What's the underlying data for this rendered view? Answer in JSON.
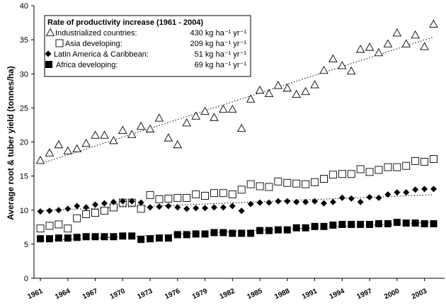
{
  "chart_data": {
    "type": "scatter",
    "ylabel": "Average root & tuber yield (tonnes/ha)",
    "ylim": [
      0,
      40
    ],
    "yticks": [
      "0",
      "5",
      "10",
      "15",
      "20",
      "25",
      "30",
      "35",
      "40"
    ],
    "xlim": [
      1961,
      2004
    ],
    "xticks": [
      "1961",
      "1964",
      "1967",
      "1970",
      "1973",
      "1976",
      "1979",
      "1982",
      "1985",
      "1988",
      "1991",
      "1994",
      "1997",
      "2000",
      "2003"
    ],
    "grid": false,
    "legend_position": "top-left",
    "legend_title": "Rate of productivity increase (1961 - 2004)",
    "x": [
      1961,
      1962,
      1963,
      1964,
      1965,
      1966,
      1967,
      1968,
      1969,
      1970,
      1971,
      1972,
      1973,
      1974,
      1975,
      1976,
      1977,
      1978,
      1979,
      1980,
      1981,
      1982,
      1983,
      1984,
      1985,
      1986,
      1987,
      1988,
      1989,
      1990,
      1991,
      1992,
      1993,
      1994,
      1995,
      1996,
      1997,
      1998,
      1999,
      2000,
      2001,
      2002,
      2003,
      2004
    ],
    "series": [
      {
        "name": "Industrialized countries:",
        "rate": "430 kg ha⁻¹ yr⁻¹",
        "marker": "triangle-open",
        "trend": "dotted",
        "values": [
          17.3,
          18.4,
          19.6,
          18.7,
          19.0,
          19.8,
          21.0,
          21.0,
          20.2,
          21.7,
          21.1,
          22.3,
          21.9,
          23.5,
          20.6,
          19.6,
          22.8,
          23.8,
          24.5,
          23.6,
          24.8,
          24.8,
          22.0,
          26.3,
          27.6,
          27.1,
          28.3,
          27.9,
          27.0,
          27.4,
          28.4,
          30.5,
          32.2,
          31.2,
          30.4,
          33.6,
          33.9,
          33.1,
          34.4,
          36.0,
          34.4,
          35.7,
          34.0,
          37.3
        ]
      },
      {
        "name": "Asia developing:",
        "rate": "209 kg ha⁻¹ yr⁻¹",
        "marker": "square-open",
        "trend": "none",
        "values": [
          7.3,
          7.7,
          7.9,
          7.3,
          8.8,
          9.4,
          9.6,
          9.9,
          10.4,
          11.1,
          11.1,
          10.2,
          12.2,
          11.6,
          11.7,
          11.8,
          11.8,
          12.3,
          12.1,
          12.5,
          12.5,
          12.3,
          13.0,
          13.8,
          13.5,
          13.4,
          14.2,
          14.0,
          13.9,
          13.8,
          14.1,
          14.6,
          15.2,
          15.3,
          15.3,
          16.0,
          15.6,
          15.9,
          16.3,
          16.3,
          16.5,
          17.2,
          17.1,
          17.5
        ]
      },
      {
        "name": "Latin America & Caribbean:",
        "rate": "51 kg ha⁻¹ yr⁻¹",
        "marker": "diamond-filled",
        "trend": "dotted",
        "values": [
          9.8,
          9.9,
          10.0,
          10.2,
          10.6,
          10.4,
          10.8,
          11.0,
          11.2,
          11.3,
          11.3,
          11.1,
          10.4,
          10.5,
          10.6,
          10.4,
          10.2,
          10.3,
          10.3,
          10.4,
          10.4,
          10.6,
          9.9,
          10.9,
          11.1,
          11.1,
          11.3,
          11.3,
          11.2,
          11.2,
          11.3,
          11.0,
          11.2,
          11.8,
          11.7,
          11.2,
          11.9,
          11.8,
          12.3,
          12.6,
          12.6,
          13.0,
          13.1,
          13.1
        ]
      },
      {
        "name": "Africa developing:",
        "rate": "69 kg ha⁻¹ yr⁻¹",
        "marker": "square-filled",
        "trend": "dotted",
        "values": [
          5.8,
          5.8,
          5.9,
          5.9,
          6.0,
          6.1,
          6.1,
          6.1,
          6.1,
          6.2,
          6.2,
          5.7,
          5.8,
          5.9,
          5.9,
          6.4,
          6.4,
          6.5,
          6.5,
          6.7,
          6.7,
          6.6,
          6.6,
          6.6,
          7.0,
          7.0,
          7.1,
          7.1,
          7.4,
          7.4,
          7.6,
          7.6,
          7.8,
          7.9,
          7.9,
          7.9,
          7.9,
          8.0,
          8.0,
          8.2,
          8.1,
          8.1,
          8.0,
          8.0
        ]
      }
    ]
  }
}
